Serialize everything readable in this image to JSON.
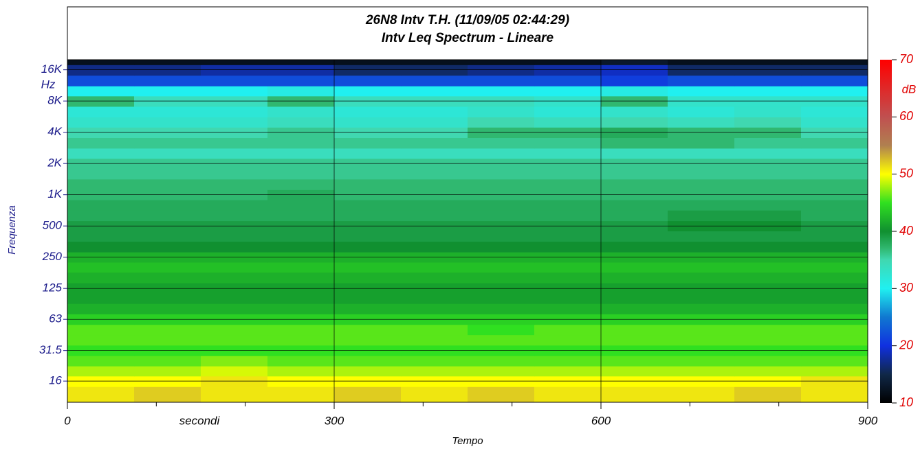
{
  "chart_data": {
    "type": "heatmap",
    "title": "26N8 Intv T.H. (11/09/05 02:44:29)",
    "subtitle": "Intv Leq Spectrum - Lineare",
    "xlabel": "Tempo",
    "xunit_label": "secondi",
    "ylabel": "Frequenza",
    "yunit_label": "Hz",
    "colorbar_label": "dB",
    "xlim": [
      0,
      900
    ],
    "xticks": [
      0,
      300,
      600,
      900
    ],
    "xminorticks": [
      100,
      200,
      400,
      500,
      700,
      800
    ],
    "yscale": "log",
    "ylim": [
      10,
      20000
    ],
    "yticks": [
      {
        "value": 16000,
        "label": "16K"
      },
      {
        "value": 8000,
        "label": "8K"
      },
      {
        "value": 4000,
        "label": "4K"
      },
      {
        "value": 2000,
        "label": "2K"
      },
      {
        "value": 1000,
        "label": "1K"
      },
      500,
      250,
      125,
      63,
      31.5,
      16
    ],
    "grid": true,
    "x_bins": [
      0,
      75,
      150,
      225,
      300,
      375,
      450,
      525,
      600,
      675,
      750,
      825,
      900
    ],
    "y": [
      12.5,
      16,
      20,
      25,
      31.5,
      40,
      50,
      63,
      80,
      100,
      125,
      160,
      200,
      250,
      315,
      400,
      500,
      630,
      800,
      1000,
      1250,
      1600,
      2000,
      2500,
      3150,
      4000,
      5000,
      6300,
      8000,
      10000,
      12500,
      16000,
      20000
    ],
    "values": [
      [
        51,
        52,
        51,
        51,
        52,
        51,
        52,
        51,
        51,
        51,
        52,
        51
      ],
      [
        50,
        50,
        51,
        50,
        50,
        50,
        50,
        50,
        50,
        50,
        50,
        51
      ],
      [
        48,
        48,
        49,
        48,
        48,
        48,
        48,
        48,
        48,
        48,
        48,
        48
      ],
      [
        46,
        46,
        47,
        46,
        46,
        46,
        46,
        46,
        46,
        46,
        46,
        46
      ],
      [
        45,
        45,
        45,
        45,
        45,
        45,
        45,
        45,
        45,
        45,
        45,
        45
      ],
      [
        46,
        46,
        46,
        46,
        46,
        46,
        46,
        46,
        46,
        46,
        46,
        46
      ],
      [
        46,
        46,
        46,
        46,
        46,
        46,
        45,
        46,
        46,
        46,
        46,
        46
      ],
      [
        44,
        44,
        44,
        44,
        44,
        44,
        44,
        44,
        44,
        44,
        44,
        44
      ],
      [
        42,
        42,
        42,
        42,
        42,
        42,
        42,
        42,
        42,
        42,
        42,
        42
      ],
      [
        41,
        41,
        41,
        41,
        41,
        41,
        41,
        41,
        41,
        41,
        41,
        41
      ],
      [
        41,
        41,
        41,
        41,
        41,
        41,
        41,
        41,
        41,
        41,
        41,
        41
      ],
      [
        42,
        42,
        42,
        42,
        42,
        42,
        42,
        42,
        42,
        42,
        42,
        42
      ],
      [
        43,
        43,
        43,
        43,
        43,
        43,
        43,
        43,
        43,
        43,
        43,
        43
      ],
      [
        42,
        42,
        42,
        42,
        42,
        42,
        42,
        42,
        42,
        42,
        42,
        42
      ],
      [
        40,
        40,
        40,
        40,
        40,
        40,
        40,
        40,
        40,
        40,
        40,
        40
      ],
      [
        39,
        39,
        39,
        39,
        39,
        39,
        39,
        39,
        39,
        39,
        39,
        39
      ],
      [
        39,
        39,
        39,
        39,
        39,
        39,
        39,
        39,
        39,
        40,
        40,
        39
      ],
      [
        38,
        38,
        38,
        38,
        38,
        38,
        38,
        38,
        38,
        39,
        39,
        38
      ],
      [
        38,
        38,
        38,
        38,
        38,
        38,
        38,
        38,
        38,
        38,
        38,
        38
      ],
      [
        37,
        37,
        37,
        38,
        37,
        37,
        37,
        37,
        37,
        37,
        37,
        37
      ],
      [
        37,
        37,
        37,
        37,
        37,
        37,
        37,
        37,
        37,
        37,
        37,
        37
      ],
      [
        36,
        36,
        36,
        36,
        36,
        36,
        36,
        36,
        36,
        36,
        36,
        36
      ],
      [
        36,
        36,
        36,
        36,
        36,
        36,
        36,
        36,
        36,
        36,
        36,
        36
      ],
      [
        34,
        34,
        34,
        34,
        34,
        34,
        34,
        34,
        34,
        34,
        34,
        34
      ],
      [
        36,
        36,
        36,
        36,
        36,
        36,
        36,
        36,
        37,
        37,
        36,
        36
      ],
      [
        35,
        35,
        35,
        36,
        35,
        35,
        37,
        37,
        38,
        37,
        37,
        35
      ],
      [
        33,
        33,
        33,
        34,
        33,
        33,
        35,
        34,
        35,
        34,
        35,
        33
      ],
      [
        32,
        32,
        32,
        33,
        32,
        32,
        33,
        32,
        33,
        32,
        33,
        32
      ],
      [
        37,
        34,
        34,
        37,
        34,
        34,
        34,
        33,
        37,
        33,
        33,
        33
      ],
      [
        30,
        30,
        30,
        31,
        30,
        30,
        30,
        30,
        31,
        30,
        30,
        30
      ],
      [
        22,
        22,
        22,
        22,
        22,
        22,
        22,
        22,
        21,
        22,
        22,
        22
      ],
      [
        17,
        17,
        18,
        18,
        16,
        16,
        17,
        18,
        19,
        16,
        16,
        16
      ],
      [
        12,
        12,
        12,
        12,
        12,
        12,
        12,
        12,
        13,
        12,
        12,
        12
      ]
    ],
    "zlim": [
      10,
      70
    ],
    "zticks": [
      10,
      20,
      30,
      40,
      50,
      60,
      70
    ],
    "colorscale": [
      [
        10,
        "#000000"
      ],
      [
        15,
        "#102848"
      ],
      [
        20,
        "#1030e0"
      ],
      [
        25,
        "#1078d0"
      ],
      [
        30,
        "#20f0f0"
      ],
      [
        35,
        "#40d8b0"
      ],
      [
        37,
        "#30b870"
      ],
      [
        40,
        "#109030"
      ],
      [
        45,
        "#30e020"
      ],
      [
        50,
        "#ffff00"
      ],
      [
        55,
        "#b08050"
      ],
      [
        60,
        "#c05050"
      ],
      [
        70,
        "#ff0000"
      ]
    ]
  }
}
